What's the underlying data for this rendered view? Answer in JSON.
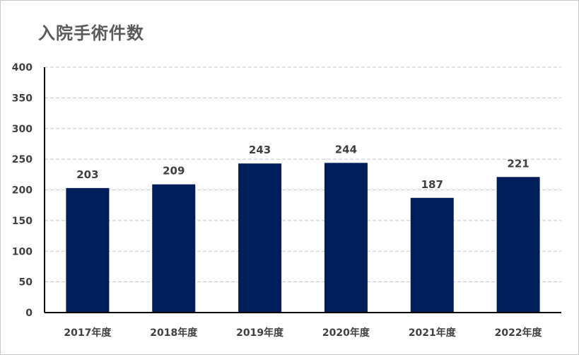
{
  "colors": {
    "bar": "#001e5a",
    "grid": "#c8c8c8",
    "axis": "#000000",
    "text": "#404040",
    "title": "#5a5a5a"
  },
  "chart_data": {
    "type": "bar",
    "title": "入院手術件数",
    "xlabel": "",
    "ylabel": "",
    "categories": [
      "2017年度",
      "2018年度",
      "2019年度",
      "2020年度",
      "2021年度",
      "2022年度"
    ],
    "values": [
      203,
      209,
      243,
      244,
      187,
      221
    ],
    "data_labels": [
      "203",
      "209",
      "243",
      "244",
      "187",
      "221"
    ],
    "ylim": [
      0,
      400
    ],
    "yticks": [
      0,
      50,
      100,
      150,
      200,
      250,
      300,
      350,
      400
    ],
    "ytick_labels": [
      "0",
      "50",
      "100",
      "150",
      "200",
      "250",
      "300",
      "350",
      "400"
    ],
    "grid": true,
    "grid_style": "dashed",
    "legend": "none"
  }
}
